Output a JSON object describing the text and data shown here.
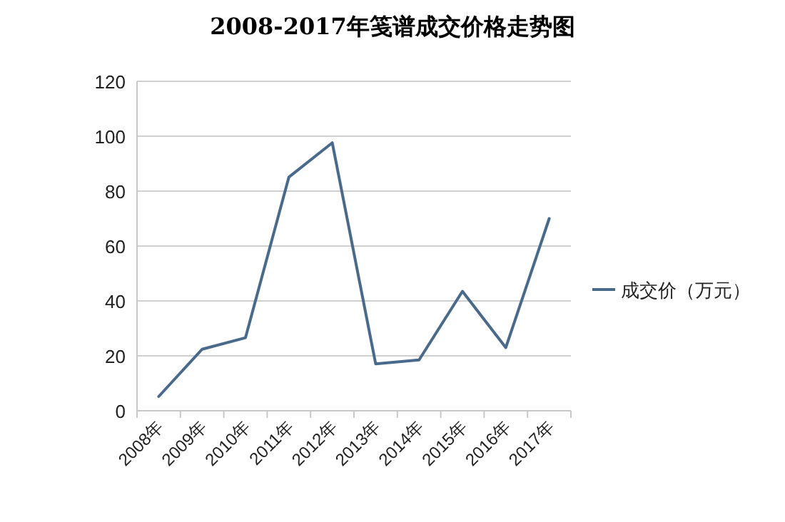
{
  "chart_data": {
    "type": "line",
    "title": "2008-2017年笺谱成交价格走势图",
    "categories": [
      "2008年",
      "2009年",
      "2010年",
      "2011年",
      "2012年",
      "2013年",
      "2014年",
      "2015年",
      "2016年",
      "2017年"
    ],
    "series": [
      {
        "name": "成交价（万元）",
        "color": "#4a6a8c",
        "values": [
          5.2,
          22.4,
          26.6,
          85.1,
          97.6,
          17.1,
          18.5,
          43.5,
          23,
          70
        ]
      }
    ],
    "ylim": [
      0,
      120
    ],
    "yticks": [
      0,
      20,
      40,
      60,
      80,
      100,
      120
    ],
    "grid": "y",
    "legend": "right",
    "marker": "none",
    "line_style": "solid"
  }
}
